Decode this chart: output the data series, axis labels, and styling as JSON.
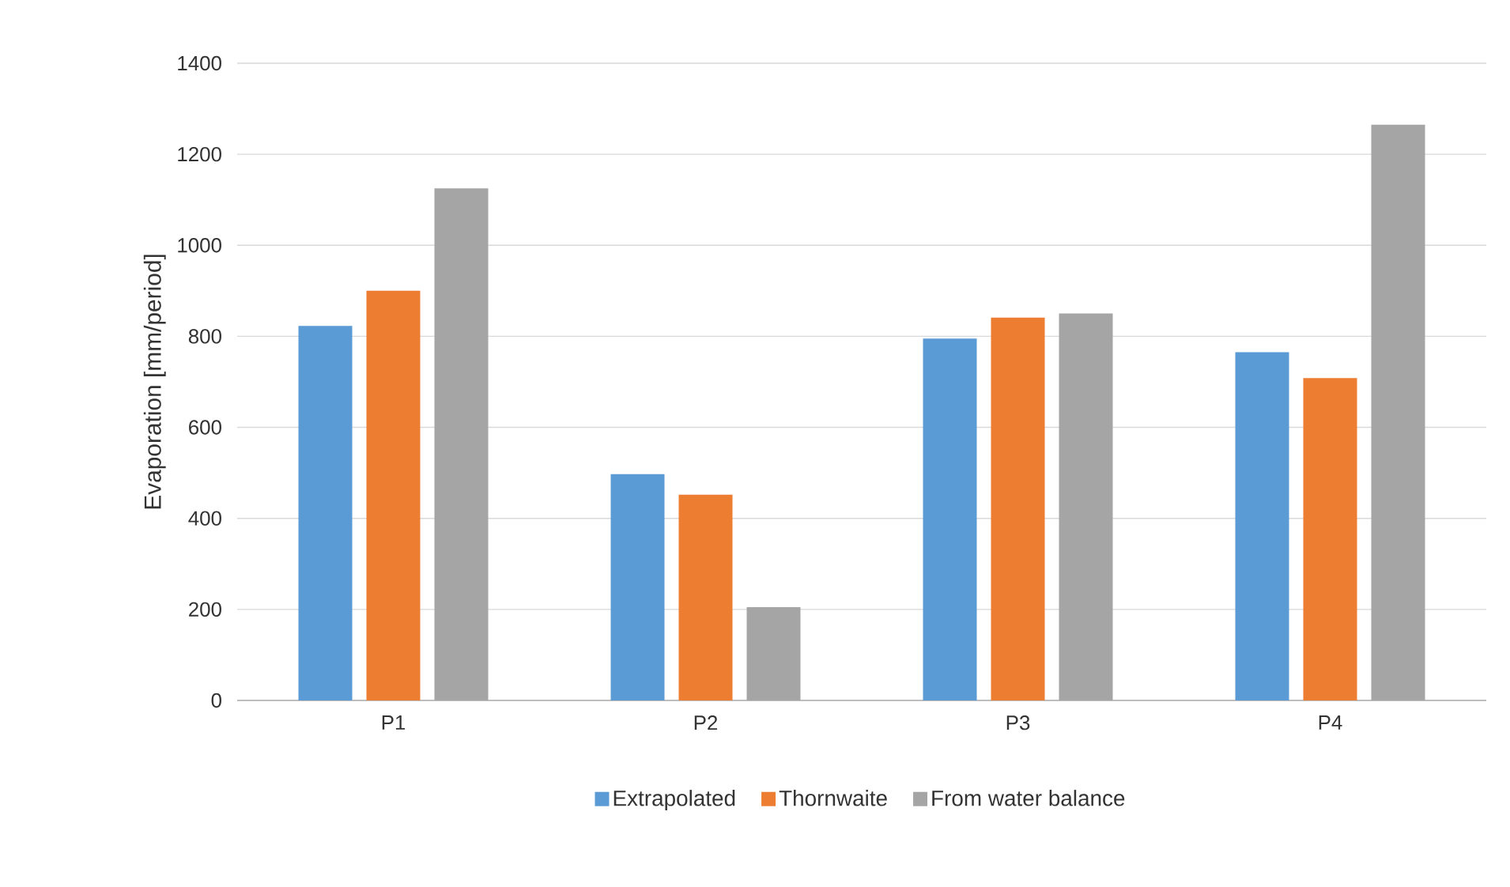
{
  "chart_data": {
    "type": "bar",
    "ylabel": "Evaporation [mm/period]",
    "categories": [
      "P1",
      "P2",
      "P3",
      "P4"
    ],
    "series": [
      {
        "name": "Extrapolated",
        "color": "#5b9bd5",
        "values": [
          823,
          497,
          795,
          765
        ]
      },
      {
        "name": "Thornwaite",
        "color": "#ed7d31",
        "values": [
          900,
          452,
          841,
          708
        ]
      },
      {
        "name": "From water balance",
        "color": "#a5a5a5",
        "values": [
          1125,
          205,
          850,
          1265
        ]
      }
    ],
    "ylim": [
      0,
      1400
    ],
    "yticks": [
      0,
      200,
      400,
      600,
      800,
      1000,
      1200,
      1400
    ],
    "grid": "y",
    "legend": "bottom"
  }
}
